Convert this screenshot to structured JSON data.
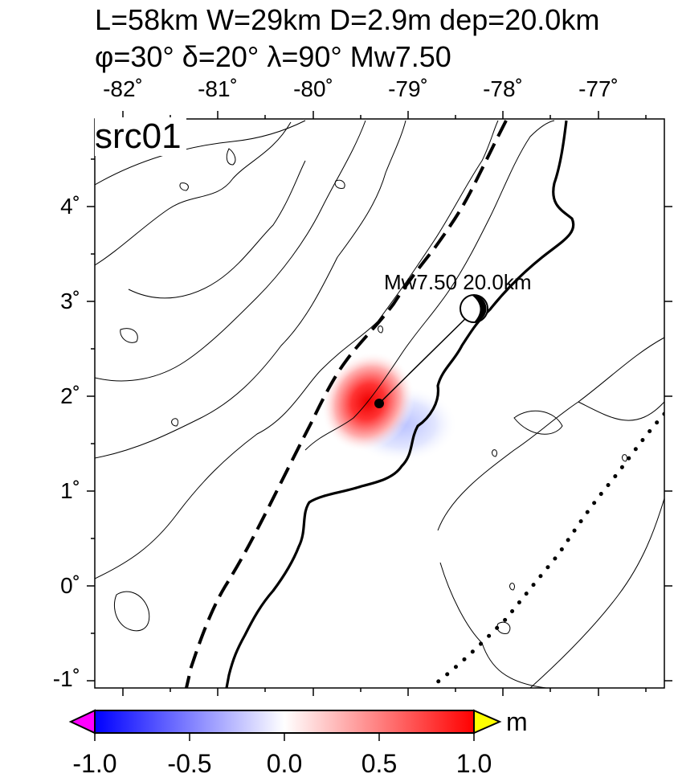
{
  "title": {
    "line1": "L=58km W=29km D=2.9m dep=20.0km",
    "line2": "φ=30° δ=20° λ=90° Mw7.50"
  },
  "panel_label": "src01",
  "axes": {
    "lon_labels": [
      "-82˚",
      "-81˚",
      "-80˚",
      "-79˚",
      "-78˚",
      "-77˚"
    ],
    "lat_labels": [
      "4˚",
      "3˚",
      "2˚",
      "1˚",
      "0˚",
      "-1˚"
    ],
    "lon_range": [
      -82.3,
      -76.3
    ],
    "lat_range": [
      -1.1,
      4.6
    ]
  },
  "earthquake": {
    "label": "Mw7.50  20.0km",
    "epicenter_lon": -79.3,
    "epicenter_lat": 1.9
  },
  "colorbar": {
    "labels": [
      "-1.0",
      "-0.5",
      "0.0",
      "0.5",
      "1.0"
    ],
    "unit": "m",
    "range": [
      -1.0,
      1.0
    ],
    "colors": {
      "low": "#0000ff",
      "mid": "#ffffff",
      "high": "#ff0000",
      "under": "#ff00ff",
      "over": "#ffff00"
    }
  },
  "map_legend_items": [
    "coastline",
    "trench",
    "bathymetry contours"
  ]
}
